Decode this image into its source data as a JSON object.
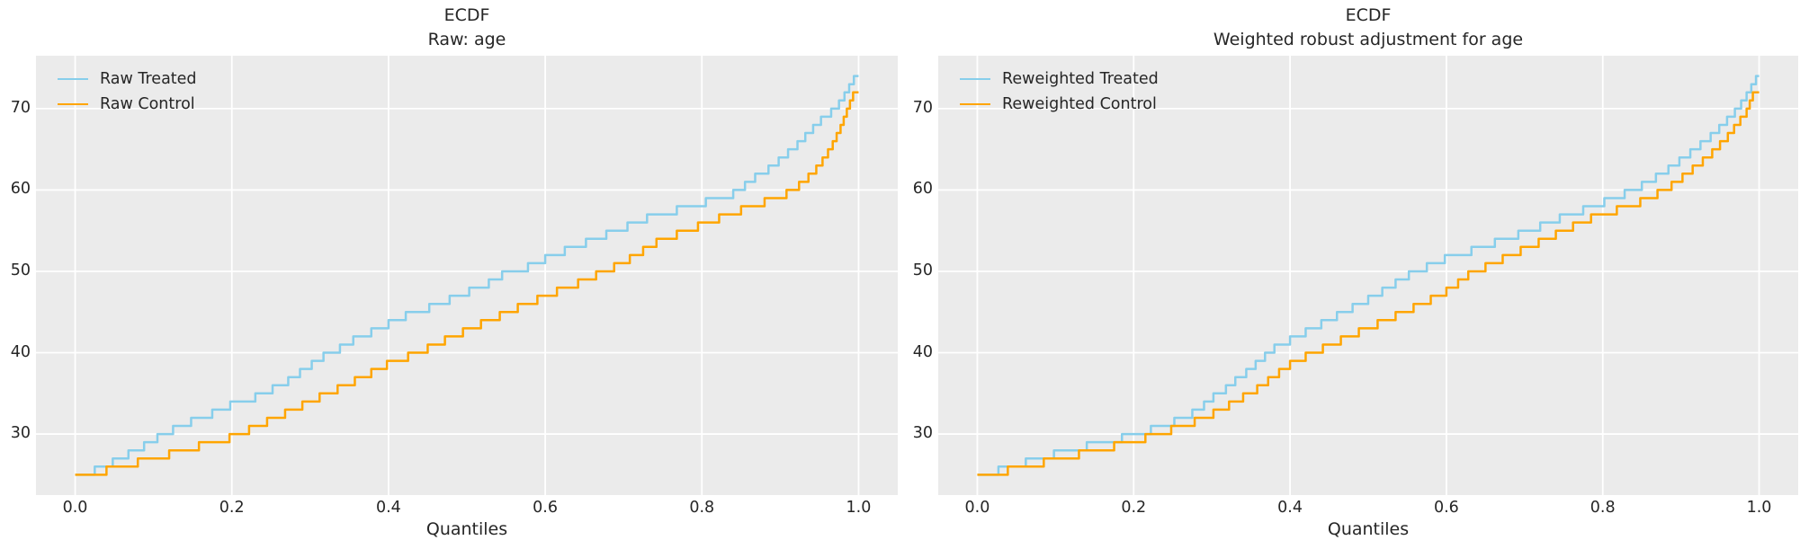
{
  "figure": {
    "background": "#ffffff",
    "text_color": "#262626",
    "plot_background": "#ebebeb",
    "grid_color": "#ffffff",
    "treated_color": "#87ceeb",
    "control_color": "#ffa500"
  },
  "chart_data": [
    {
      "type": "line",
      "subtype": "quantile-step-ecdf",
      "title": "ECDF",
      "subtitle": "Raw: age",
      "xlabel": "Quantiles",
      "ylabel": "",
      "xlim": [
        -0.05,
        1.05
      ],
      "ylim": [
        22.5,
        76.5
      ],
      "x_ticks": [
        0.0,
        0.2,
        0.4,
        0.6,
        0.8,
        1.0
      ],
      "x_tick_labels": [
        "0.0",
        "0.2",
        "0.4",
        "0.6",
        "0.8",
        "1.0"
      ],
      "y_ticks": [
        30,
        40,
        50,
        60,
        70
      ],
      "grid": true,
      "legend_position": "upper left",
      "series": [
        {
          "name": "Raw Treated",
          "color": "#87ceeb",
          "step_points": [
            [
              0,
              25
            ],
            [
              0.025,
              26
            ],
            [
              0.048,
              27
            ],
            [
              0.068,
              28
            ],
            [
              0.088,
              29
            ],
            [
              0.105,
              30
            ],
            [
              0.125,
              31
            ],
            [
              0.148,
              32
            ],
            [
              0.175,
              33
            ],
            [
              0.198,
              34
            ],
            [
              0.23,
              35
            ],
            [
              0.252,
              36
            ],
            [
              0.272,
              37
            ],
            [
              0.287,
              38
            ],
            [
              0.302,
              39
            ],
            [
              0.317,
              40
            ],
            [
              0.338,
              41
            ],
            [
              0.355,
              42
            ],
            [
              0.378,
              43
            ],
            [
              0.4,
              44
            ],
            [
              0.422,
              45
            ],
            [
              0.452,
              46
            ],
            [
              0.478,
              47
            ],
            [
              0.503,
              48
            ],
            [
              0.528,
              49
            ],
            [
              0.545,
              50
            ],
            [
              0.578,
              51
            ],
            [
              0.6,
              52
            ],
            [
              0.625,
              53
            ],
            [
              0.652,
              54
            ],
            [
              0.678,
              55
            ],
            [
              0.705,
              56
            ],
            [
              0.73,
              57
            ],
            [
              0.768,
              58
            ],
            [
              0.805,
              59
            ],
            [
              0.84,
              60
            ],
            [
              0.855,
              61
            ],
            [
              0.868,
              62
            ],
            [
              0.885,
              63
            ],
            [
              0.898,
              64
            ],
            [
              0.91,
              65
            ],
            [
              0.922,
              66
            ],
            [
              0.932,
              67
            ],
            [
              0.942,
              68
            ],
            [
              0.952,
              69
            ],
            [
              0.965,
              70
            ],
            [
              0.975,
              71
            ],
            [
              0.982,
              72
            ],
            [
              0.988,
              73
            ],
            [
              0.994,
              74
            ]
          ]
        },
        {
          "name": "Raw Control",
          "color": "#ffa500",
          "step_points": [
            [
              0,
              25
            ],
            [
              0.04,
              26
            ],
            [
              0.08,
              27
            ],
            [
              0.12,
              28
            ],
            [
              0.158,
              29
            ],
            [
              0.197,
              30
            ],
            [
              0.222,
              31
            ],
            [
              0.245,
              32
            ],
            [
              0.268,
              33
            ],
            [
              0.29,
              34
            ],
            [
              0.312,
              35
            ],
            [
              0.335,
              36
            ],
            [
              0.357,
              37
            ],
            [
              0.378,
              38
            ],
            [
              0.398,
              39
            ],
            [
              0.425,
              40
            ],
            [
              0.45,
              41
            ],
            [
              0.472,
              42
            ],
            [
              0.495,
              43
            ],
            [
              0.518,
              44
            ],
            [
              0.542,
              45
            ],
            [
              0.565,
              46
            ],
            [
              0.59,
              47
            ],
            [
              0.615,
              48
            ],
            [
              0.642,
              49
            ],
            [
              0.665,
              50
            ],
            [
              0.688,
              51
            ],
            [
              0.708,
              52
            ],
            [
              0.725,
              53
            ],
            [
              0.742,
              54
            ],
            [
              0.768,
              55
            ],
            [
              0.795,
              56
            ],
            [
              0.822,
              57
            ],
            [
              0.85,
              58
            ],
            [
              0.88,
              59
            ],
            [
              0.908,
              60
            ],
            [
              0.924,
              61
            ],
            [
              0.936,
              62
            ],
            [
              0.946,
              63
            ],
            [
              0.954,
              64
            ],
            [
              0.961,
              65
            ],
            [
              0.967,
              66
            ],
            [
              0.972,
              67
            ],
            [
              0.977,
              68
            ],
            [
              0.981,
              69
            ],
            [
              0.985,
              70
            ],
            [
              0.989,
              71
            ],
            [
              0.993,
              72
            ]
          ]
        }
      ]
    },
    {
      "type": "line",
      "subtype": "quantile-step-ecdf",
      "title": "ECDF",
      "subtitle": "Weighted robust adjustment for age",
      "xlabel": "Quantiles",
      "ylabel": "",
      "xlim": [
        -0.05,
        1.05
      ],
      "ylim": [
        22.5,
        76.5
      ],
      "x_ticks": [
        0.0,
        0.2,
        0.4,
        0.6,
        0.8,
        1.0
      ],
      "x_tick_labels": [
        "0.0",
        "0.2",
        "0.4",
        "0.6",
        "0.8",
        "1.0"
      ],
      "y_ticks": [
        30,
        40,
        50,
        60,
        70
      ],
      "grid": true,
      "legend_position": "upper left",
      "series": [
        {
          "name": "Reweighted Treated",
          "color": "#87ceeb",
          "step_points": [
            [
              0,
              25
            ],
            [
              0.027,
              26
            ],
            [
              0.062,
              27
            ],
            [
              0.098,
              28
            ],
            [
              0.14,
              29
            ],
            [
              0.185,
              30
            ],
            [
              0.222,
              31
            ],
            [
              0.252,
              32
            ],
            [
              0.275,
              33
            ],
            [
              0.29,
              34
            ],
            [
              0.302,
              35
            ],
            [
              0.318,
              36
            ],
            [
              0.33,
              37
            ],
            [
              0.344,
              38
            ],
            [
              0.356,
              39
            ],
            [
              0.368,
              40
            ],
            [
              0.38,
              41
            ],
            [
              0.4,
              42
            ],
            [
              0.42,
              43
            ],
            [
              0.44,
              44
            ],
            [
              0.46,
              45
            ],
            [
              0.48,
              46
            ],
            [
              0.5,
              47
            ],
            [
              0.518,
              48
            ],
            [
              0.535,
              49
            ],
            [
              0.552,
              50
            ],
            [
              0.575,
              51
            ],
            [
              0.598,
              52
            ],
            [
              0.632,
              53
            ],
            [
              0.662,
              54
            ],
            [
              0.692,
              55
            ],
            [
              0.72,
              56
            ],
            [
              0.745,
              57
            ],
            [
              0.775,
              58
            ],
            [
              0.802,
              59
            ],
            [
              0.828,
              60
            ],
            [
              0.85,
              61
            ],
            [
              0.868,
              62
            ],
            [
              0.884,
              63
            ],
            [
              0.898,
              64
            ],
            [
              0.912,
              65
            ],
            [
              0.925,
              66
            ],
            [
              0.938,
              67
            ],
            [
              0.949,
              68
            ],
            [
              0.959,
              69
            ],
            [
              0.969,
              70
            ],
            [
              0.977,
              71
            ],
            [
              0.984,
              72
            ],
            [
              0.99,
              73
            ],
            [
              0.996,
              74
            ]
          ]
        },
        {
          "name": "Reweighted Control",
          "color": "#ffa500",
          "step_points": [
            [
              0,
              25
            ],
            [
              0.039,
              26
            ],
            [
              0.085,
              27
            ],
            [
              0.13,
              28
            ],
            [
              0.175,
              29
            ],
            [
              0.215,
              30
            ],
            [
              0.248,
              31
            ],
            [
              0.278,
              32
            ],
            [
              0.302,
              33
            ],
            [
              0.322,
              34
            ],
            [
              0.34,
              35
            ],
            [
              0.358,
              36
            ],
            [
              0.372,
              37
            ],
            [
              0.386,
              38
            ],
            [
              0.4,
              39
            ],
            [
              0.42,
              40
            ],
            [
              0.442,
              41
            ],
            [
              0.465,
              42
            ],
            [
              0.488,
              43
            ],
            [
              0.512,
              44
            ],
            [
              0.535,
              45
            ],
            [
              0.558,
              46
            ],
            [
              0.58,
              47
            ],
            [
              0.6,
              48
            ],
            [
              0.615,
              49
            ],
            [
              0.628,
              50
            ],
            [
              0.65,
              51
            ],
            [
              0.672,
              52
            ],
            [
              0.695,
              53
            ],
            [
              0.718,
              54
            ],
            [
              0.74,
              55
            ],
            [
              0.762,
              56
            ],
            [
              0.785,
              57
            ],
            [
              0.818,
              58
            ],
            [
              0.848,
              59
            ],
            [
              0.87,
              60
            ],
            [
              0.888,
              61
            ],
            [
              0.902,
              62
            ],
            [
              0.915,
              63
            ],
            [
              0.928,
              64
            ],
            [
              0.94,
              65
            ],
            [
              0.95,
              66
            ],
            [
              0.96,
              67
            ],
            [
              0.968,
              68
            ],
            [
              0.976,
              69
            ],
            [
              0.984,
              70
            ],
            [
              0.988,
              71
            ],
            [
              0.992,
              72
            ]
          ]
        }
      ]
    }
  ]
}
